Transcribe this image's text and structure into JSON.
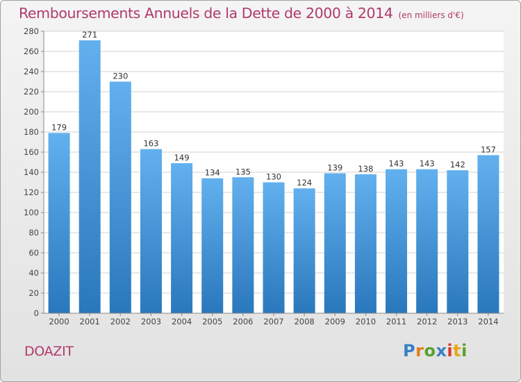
{
  "title": "Remboursements Annuels de la Dette de 2000 à 2014",
  "unit_note": "(en milliers d'€)",
  "location_label": "DOAZIT",
  "brand": {
    "text": "Proxiti",
    "letters": [
      {
        "ch": "P",
        "color": "#3a7fc4"
      },
      {
        "ch": "r",
        "color": "#e57c14"
      },
      {
        "ch": "o",
        "color": "#5aa02c"
      },
      {
        "ch": "x",
        "color": "#3a7fc4"
      },
      {
        "ch": "i",
        "color": "#d63a2a"
      },
      {
        "ch": "t",
        "color": "#e5a814"
      },
      {
        "ch": "i",
        "color": "#5aa02c"
      }
    ]
  },
  "colors": {
    "title": "#b03a6a",
    "bar_top": "#62b0ee",
    "bar_bottom": "#2a78bc",
    "grid": "#d0d0d0",
    "axis": "#888888"
  },
  "chart_data": {
    "type": "bar",
    "categories": [
      "2000",
      "2001",
      "2002",
      "2003",
      "2004",
      "2005",
      "2006",
      "2007",
      "2008",
      "2009",
      "2010",
      "2011",
      "2012",
      "2013",
      "2014"
    ],
    "values": [
      179,
      271,
      230,
      163,
      149,
      134,
      135,
      130,
      124,
      139,
      138,
      143,
      143,
      142,
      157
    ],
    "data_labels": [
      "179",
      "271",
      "230",
      "163",
      "149",
      "134",
      "135",
      "130",
      "124",
      "139",
      "138",
      "143",
      "143",
      "142",
      "157"
    ],
    "ylim": [
      0,
      280
    ],
    "yticks": [
      0,
      20,
      40,
      60,
      80,
      100,
      120,
      140,
      160,
      180,
      200,
      220,
      240,
      260,
      280
    ],
    "grid": true,
    "xlabel": "",
    "ylabel": ""
  }
}
